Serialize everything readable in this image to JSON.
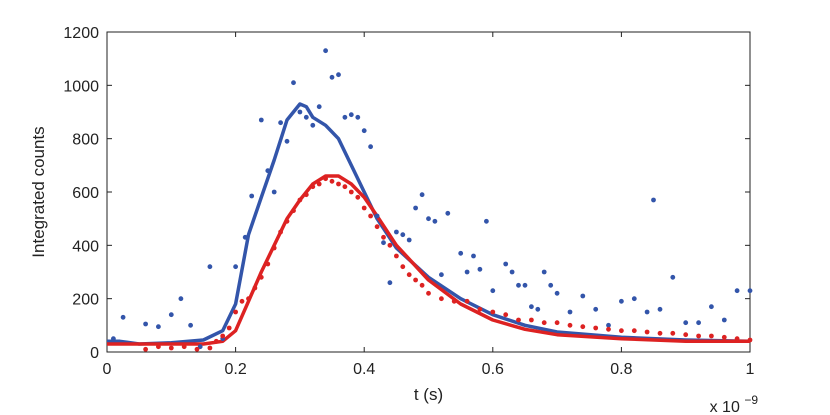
{
  "chart_data": {
    "type": "scatter",
    "title": "",
    "xlabel": "t (s)",
    "ylabel": "Integrated counts",
    "x_multiplier": {
      "base": "x 10",
      "exponent": "−9"
    },
    "xlim": [
      0,
      1
    ],
    "ylim": [
      0,
      1200
    ],
    "xticks": [
      0,
      0.2,
      0.4,
      0.6,
      0.8,
      1
    ],
    "xtick_labels": [
      "0",
      "0.2",
      "0.4",
      "0.6",
      "0.8",
      "1"
    ],
    "yticks": [
      0,
      200,
      400,
      600,
      800,
      1000,
      1200
    ],
    "ytick_labels": [
      "0",
      "200",
      "400",
      "600",
      "800",
      "1000",
      "1200"
    ],
    "grid": false,
    "legend": "none",
    "series": [
      {
        "kind": "points",
        "color": "#3355aa",
        "x": [
          0.01,
          0.025,
          0.06,
          0.08,
          0.1,
          0.115,
          0.13,
          0.145,
          0.16,
          0.18,
          0.2,
          0.215,
          0.225,
          0.24,
          0.25,
          0.26,
          0.27,
          0.28,
          0.29,
          0.3,
          0.31,
          0.32,
          0.33,
          0.34,
          0.35,
          0.36,
          0.37,
          0.38,
          0.39,
          0.4,
          0.41,
          0.42,
          0.43,
          0.44,
          0.45,
          0.46,
          0.47,
          0.48,
          0.49,
          0.5,
          0.51,
          0.52,
          0.53,
          0.55,
          0.56,
          0.57,
          0.58,
          0.59,
          0.6,
          0.62,
          0.63,
          0.64,
          0.65,
          0.66,
          0.67,
          0.68,
          0.69,
          0.7,
          0.72,
          0.74,
          0.76,
          0.78,
          0.8,
          0.82,
          0.84,
          0.85,
          0.86,
          0.88,
          0.9,
          0.92,
          0.94,
          0.96,
          0.98,
          1.0
        ],
        "y": [
          50,
          130,
          105,
          95,
          140,
          200,
          100,
          20,
          320,
          50,
          320,
          430,
          585,
          870,
          680,
          600,
          860,
          790,
          1010,
          900,
          880,
          850,
          920,
          1130,
          1030,
          1040,
          880,
          890,
          880,
          830,
          770,
          510,
          410,
          260,
          450,
          440,
          420,
          540,
          590,
          500,
          490,
          290,
          520,
          370,
          300,
          360,
          310,
          490,
          230,
          330,
          300,
          250,
          250,
          170,
          160,
          300,
          250,
          220,
          150,
          210,
          160,
          100,
          190,
          200,
          150,
          570,
          160,
          280,
          110,
          110,
          170,
          120,
          230,
          230
        ],
        "fit_x": [
          0.0,
          0.02,
          0.05,
          0.1,
          0.15,
          0.18,
          0.2,
          0.22,
          0.24,
          0.26,
          0.28,
          0.3,
          0.31,
          0.32,
          0.34,
          0.36,
          0.38,
          0.4,
          0.42,
          0.45,
          0.5,
          0.55,
          0.6,
          0.65,
          0.7,
          0.8,
          0.9,
          1.0
        ],
        "fit_y": [
          40,
          40,
          30,
          35,
          45,
          80,
          180,
          440,
          580,
          720,
          870,
          930,
          920,
          880,
          850,
          800,
          700,
          600,
          500,
          390,
          280,
          200,
          140,
          100,
          75,
          55,
          45,
          40
        ]
      },
      {
        "kind": "points",
        "color": "#dd2222",
        "x": [
          0.06,
          0.08,
          0.1,
          0.12,
          0.14,
          0.16,
          0.17,
          0.18,
          0.19,
          0.2,
          0.21,
          0.22,
          0.23,
          0.24,
          0.25,
          0.26,
          0.27,
          0.28,
          0.29,
          0.3,
          0.31,
          0.32,
          0.33,
          0.34,
          0.35,
          0.36,
          0.37,
          0.38,
          0.39,
          0.4,
          0.41,
          0.42,
          0.43,
          0.44,
          0.45,
          0.46,
          0.47,
          0.48,
          0.49,
          0.5,
          0.52,
          0.54,
          0.56,
          0.58,
          0.6,
          0.62,
          0.64,
          0.66,
          0.68,
          0.7,
          0.72,
          0.74,
          0.76,
          0.78,
          0.8,
          0.82,
          0.84,
          0.86,
          0.88,
          0.9,
          0.92,
          0.94,
          0.96,
          0.98,
          1.0
        ],
        "y": [
          10,
          20,
          15,
          20,
          10,
          15,
          40,
          60,
          90,
          150,
          190,
          200,
          240,
          280,
          330,
          390,
          450,
          490,
          530,
          570,
          590,
          620,
          630,
          650,
          640,
          630,
          620,
          600,
          580,
          540,
          510,
          470,
          430,
          400,
          360,
          320,
          290,
          270,
          250,
          220,
          200,
          190,
          190,
          160,
          150,
          140,
          120,
          120,
          110,
          110,
          100,
          95,
          90,
          85,
          80,
          80,
          75,
          70,
          70,
          65,
          60,
          60,
          55,
          50,
          45
        ],
        "fit_x": [
          0.0,
          0.05,
          0.1,
          0.15,
          0.18,
          0.2,
          0.22,
          0.24,
          0.26,
          0.28,
          0.3,
          0.32,
          0.34,
          0.36,
          0.38,
          0.4,
          0.42,
          0.45,
          0.5,
          0.55,
          0.6,
          0.65,
          0.7,
          0.8,
          0.9,
          1.0
        ],
        "fit_y": [
          30,
          30,
          30,
          30,
          40,
          80,
          190,
          300,
          400,
          500,
          570,
          630,
          660,
          660,
          630,
          580,
          510,
          400,
          270,
          180,
          120,
          85,
          65,
          50,
          40,
          40
        ]
      }
    ]
  }
}
